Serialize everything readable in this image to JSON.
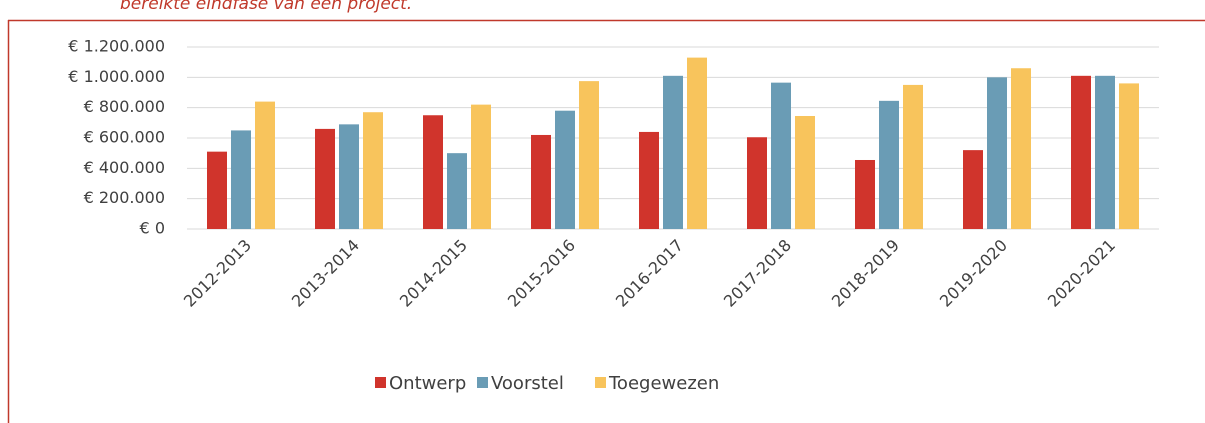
{
  "chart_data": {
    "type": "bar",
    "caption": "bereikte eindfase van een project.",
    "categories": [
      "2012-2013",
      "2013-2014",
      "2014-2015",
      "2015-2016",
      "2016-2017",
      "2017-2018",
      "2018-2019",
      "2019-2020",
      "2020-2021"
    ],
    "series": [
      {
        "name": "Ontwerp",
        "color": "#d0342c",
        "values": [
          510000,
          660000,
          750000,
          620000,
          640000,
          605000,
          455000,
          520000,
          1010000
        ]
      },
      {
        "name": "Voorstel",
        "color": "#6a9cb5",
        "values": [
          650000,
          690000,
          500000,
          780000,
          1010000,
          965000,
          845000,
          1000000,
          1010000
        ]
      },
      {
        "name": "Toegewezen",
        "color": "#f8c45c",
        "values": [
          840000,
          770000,
          820000,
          975000,
          1130000,
          745000,
          950000,
          1060000,
          960000
        ]
      }
    ],
    "ylim": [
      0,
      1200000
    ],
    "yticks": [
      {
        "value": 0,
        "label": "€ 0"
      },
      {
        "value": 200000,
        "label": "€ 200.000"
      },
      {
        "value": 400000,
        "label": "€ 400.000"
      },
      {
        "value": 600000,
        "label": "€ 600.000"
      },
      {
        "value": 800000,
        "label": "€ 800.000"
      },
      {
        "value": 1000000,
        "label": "€ 1.000.000"
      },
      {
        "value": 1200000,
        "label": "€ 1.200.000"
      }
    ],
    "grid": true,
    "legend": "bottom"
  }
}
